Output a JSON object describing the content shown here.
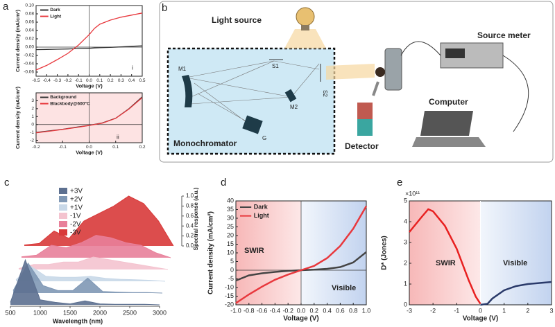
{
  "panel_labels": [
    "a",
    "b",
    "c",
    "d",
    "e"
  ],
  "diagram": {
    "light_source": "Light source",
    "source_meter": "Source meter",
    "computer": "Computer",
    "detector": "Detector",
    "monochromator": "Monochromator",
    "m1": "M1",
    "m2": "M2",
    "s1": "S1",
    "s2": "S2",
    "g": "G"
  },
  "chart_data": [
    {
      "type": "line",
      "xlabel": "Voltage (V)",
      "ylabel": "Current density (mA/cm²)",
      "annotations": [
        "i"
      ],
      "legend": "upper left",
      "zero_lines": true,
      "x": [
        -0.5,
        -0.4,
        -0.3,
        -0.2,
        -0.15,
        -0.1,
        0,
        0.05,
        0.1,
        0.2,
        0.3,
        0.4,
        0.5
      ],
      "series": [
        {
          "name": "Dark",
          "color": "#333333",
          "values": [
            -0.006,
            -0.0055,
            -0.005,
            -0.0045,
            -0.004,
            -0.0035,
            -0.003,
            -0.002,
            -0.0015,
            -0.0005,
            0.0005,
            0.002,
            0.003
          ]
        },
        {
          "name": "Light",
          "color": "#e8383d",
          "values": [
            -0.055,
            -0.044,
            -0.03,
            -0.015,
            -0.005,
            0.005,
            0.03,
            0.045,
            0.055,
            0.065,
            0.072,
            0.077,
            0.082
          ]
        }
      ],
      "xlim": [
        -0.5,
        0.5
      ],
      "xticks": [
        -0.5,
        -0.4,
        -0.3,
        -0.2,
        -0.1,
        {
          "value": 0,
          "label": "0.0"
        },
        0.1,
        0.2,
        0.3,
        0.4,
        0.5
      ],
      "ylim": [
        -0.07,
        0.1
      ],
      "yticks": [
        -0.06,
        -0.04,
        -0.02,
        {
          "value": 0,
          "label": "0.00"
        },
        0.02,
        0.04,
        0.06,
        0.08,
        {
          "value": 0.1,
          "label": "0.10"
        }
      ]
    },
    {
      "type": "line",
      "xlabel": "Voltage (V)",
      "ylabel": "Current density (mA/cm²)",
      "annotations": [
        "ii"
      ],
      "legend": "upper left",
      "zero_lines": true,
      "x": [
        -0.2,
        -0.15,
        -0.1,
        -0.05,
        0,
        0.05,
        0.1,
        0.15,
        0.2
      ],
      "series": [
        {
          "name": "Background",
          "color": "#333333",
          "values": [
            -1.0,
            -0.8,
            -0.6,
            -0.35,
            -0.1,
            0.2,
            0.8,
            2.0,
            3.5
          ]
        },
        {
          "name": "Blackbody@600°C",
          "color": "#e8383d",
          "values": [
            -1.05,
            -0.85,
            -0.62,
            -0.38,
            -0.12,
            0.18,
            0.78,
            1.95,
            3.4
          ]
        }
      ],
      "xlim": [
        -0.2,
        0.2
      ],
      "xticks": [
        -0.2,
        -0.1,
        {
          "value": 0,
          "label": "0.0"
        },
        0.1,
        0.2
      ],
      "ylim": [
        -2.3,
        4
      ],
      "yticks": [
        -2,
        -1,
        0,
        1,
        2,
        3
      ]
    },
    {
      "type": "waterfall",
      "xlabel": "Wavelength (nm)",
      "zlabel": "Spectral response (a.u.)",
      "x": [
        500,
        750,
        1000,
        1250,
        1500,
        1750,
        2000,
        2250,
        2500,
        2750,
        3000
      ],
      "series": [
        {
          "name": "+3V",
          "color": "#5d7090",
          "values": [
            0.05,
            0.9,
            0.1,
            0.05,
            0.02,
            0.08,
            0.02,
            0.01,
            0.01,
            0.01,
            0
          ]
        },
        {
          "name": "+2V",
          "color": "#8098b5",
          "values": [
            0.05,
            0.6,
            0.15,
            0.05,
            0.05,
            0.3,
            0.03,
            0.02,
            0.01,
            0.01,
            0
          ]
        },
        {
          "name": "+1V",
          "color": "#c8d8e8",
          "values": [
            0.03,
            0.3,
            0.1,
            0.08,
            0.08,
            0.1,
            0.06,
            0.04,
            0.03,
            0.02,
            0
          ]
        },
        {
          "name": "-1V",
          "color": "#f4c3cf",
          "values": [
            0.02,
            0.1,
            0.1,
            0.15,
            0.15,
            0.25,
            0.2,
            0.15,
            0.1,
            0.05,
            0
          ]
        },
        {
          "name": "-2V",
          "color": "#e8809a",
          "values": [
            0.02,
            0.05,
            0.25,
            0.2,
            0.3,
            0.45,
            0.4,
            0.3,
            0.25,
            0.1,
            0
          ]
        },
        {
          "name": "-3V",
          "color": "#d83a3a",
          "values": [
            0.02,
            0.05,
            0.3,
            0.15,
            0.5,
            0.65,
            0.8,
            1.0,
            0.85,
            0.5,
            0
          ]
        }
      ],
      "xlim": [
        500,
        3000
      ],
      "xticks": [
        500,
        1000,
        1500,
        2000,
        2500,
        3000
      ],
      "zlim": [
        0,
        1
      ],
      "zticks": [
        {
          "value": 0,
          "label": "0.0"
        },
        0.2,
        0.4,
        0.6,
        0.8,
        {
          "value": 1,
          "label": "1.0"
        }
      ]
    },
    {
      "type": "line",
      "xlabel": "Voltage (V)",
      "ylabel": "Current density (mA/cm²)",
      "annotations": [
        "SWIR",
        "Visible"
      ],
      "legend": "upper left",
      "zero_lines": true,
      "x": [
        -1,
        -0.8,
        -0.6,
        -0.4,
        -0.2,
        0,
        0.2,
        0.4,
        0.6,
        0.8,
        1
      ],
      "series": [
        {
          "name": "Dark",
          "color": "#444444",
          "values": [
            -6,
            -3,
            -1.8,
            -1,
            -0.4,
            0,
            0.3,
            0.8,
            1.8,
            4.5,
            10.5
          ]
        },
        {
          "name": "Light",
          "color": "#e8383d",
          "values": [
            -19,
            -14,
            -9.5,
            -5.5,
            -2.5,
            0,
            2.5,
            7,
            14,
            24,
            37
          ]
        }
      ],
      "xlim": [
        -1,
        1
      ],
      "xticks": [
        {
          "value": -1,
          "label": "-1.0"
        },
        -0.8,
        -0.6,
        -0.4,
        -0.2,
        {
          "value": 0,
          "label": "0.0"
        },
        0.2,
        0.4,
        0.6,
        0.8,
        {
          "value": 1,
          "label": "1.0"
        }
      ],
      "ylim": [
        -20,
        40
      ],
      "yticks": [
        -20,
        -15,
        -10,
        -5,
        0,
        5,
        10,
        15,
        20,
        25,
        30,
        35,
        40
      ]
    },
    {
      "type": "line",
      "xlabel": "Voltage (V)",
      "ylabel": "D* (Jones)",
      "multiplier": "×10¹¹",
      "annotations": [
        "SWIR",
        "Visible"
      ],
      "x": [
        -3,
        -2.5,
        -2.2,
        -2,
        -1.5,
        -1,
        -0.5,
        -0.2,
        0,
        0.3,
        0.5,
        1,
        1.5,
        2,
        2.5,
        3
      ],
      "series": [
        {
          "color": "#e82020",
          "values": [
            3.5,
            4.2,
            4.6,
            4.5,
            3.8,
            2.7,
            1.2,
            0.4,
            0.05,
            null,
            null,
            null,
            null,
            null,
            null,
            null
          ]
        },
        {
          "color": "#2a3a6a",
          "values": [
            null,
            null,
            null,
            null,
            null,
            null,
            null,
            null,
            0,
            0.05,
            0.3,
            0.7,
            0.9,
            1.0,
            1.05,
            1.1
          ]
        }
      ],
      "xlim": [
        -3,
        3
      ],
      "xticks": [
        -3,
        -2,
        -1,
        0,
        1,
        2,
        3
      ],
      "ylim": [
        0,
        5
      ],
      "yticks": [
        0,
        1,
        2,
        3,
        4,
        5
      ]
    }
  ]
}
